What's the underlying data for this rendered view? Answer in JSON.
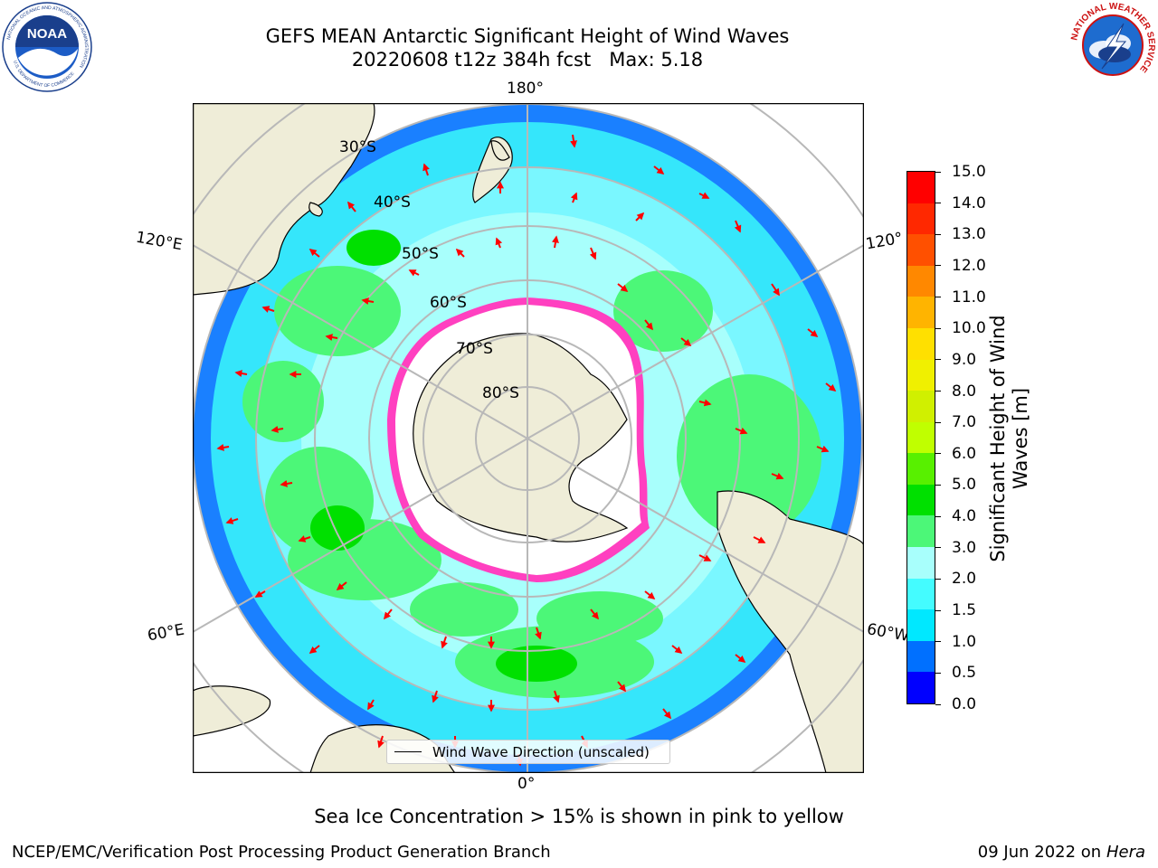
{
  "header": {
    "title_line1": "GEFS MEAN Antarctic Significant Height of Wind Waves",
    "title_line2": "20220608 t12z 384h fcst   Max: 5.18"
  },
  "logos": {
    "left": {
      "name": "NOAA",
      "ring_text": "NATIONAL OCEANIC AND ATMOSPHERIC ADMINISTRATION",
      "bottom_text": "U.S. DEPARTMENT OF COMMERCE"
    },
    "right": {
      "ring_text": "NATIONAL WEATHER SERVICE"
    }
  },
  "map": {
    "projection": "south-polar-stereographic",
    "longitude_labels": {
      "top": "180°",
      "bottom": "0°",
      "upper_left": "120°E",
      "lower_left": "60°E",
      "upper_right": "120°",
      "lower_right": "60°W"
    },
    "latitude_labels": [
      "30°S",
      "40°S",
      "50°S",
      "60°S",
      "70°S",
      "80°S"
    ],
    "legend": "Wind Wave Direction (unscaled)",
    "colors": {
      "land": "#efedd8",
      "grid": "#b8b8b8",
      "ice": "#ffffff",
      "arrow": "#ff0000"
    }
  },
  "colorbar": {
    "label": "Significant Height of Wind Waves [m]",
    "ticks": [
      "0.0",
      "0.5",
      "1.0",
      "1.5",
      "2.0",
      "3.0",
      "4.0",
      "5.0",
      "6.0",
      "7.0",
      "8.0",
      "9.0",
      "10.0",
      "11.0",
      "12.0",
      "13.0",
      "14.0",
      "15.0"
    ],
    "colors": [
      "#0000ff",
      "#0070ff",
      "#00e8ff",
      "#44fcff",
      "#a8fffc",
      "#4cf778",
      "#00e000",
      "#58f000",
      "#c0ff00",
      "#d0f000",
      "#f0f000",
      "#ffe000",
      "#ffb400",
      "#ff8800",
      "#ff5000",
      "#ff2800",
      "#ff0000"
    ]
  },
  "footer": {
    "note": "Sea Ice Concentration > 15% is shown in pink to yellow",
    "credit": "NCEP/EMC/Verification Post Processing Product Generation Branch",
    "date": "09 Jun 2022 on",
    "machine": "Hera"
  }
}
